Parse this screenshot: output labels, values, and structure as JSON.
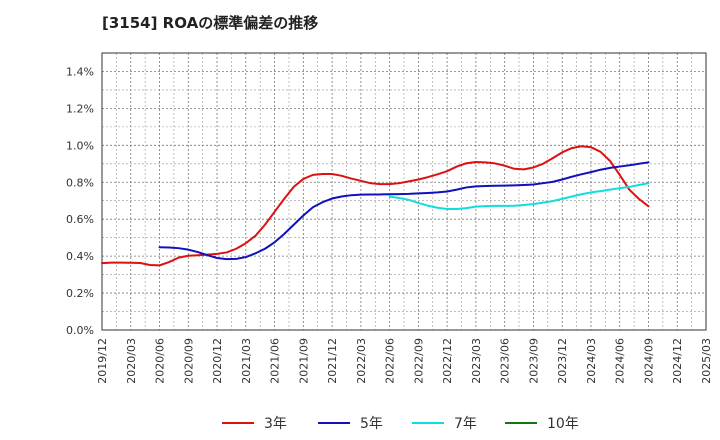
{
  "chart_data": {
    "type": "line",
    "title": "[3154]  ROAの標準偏差の推移",
    "xlabel": "",
    "ylabel": "",
    "ylim": [
      0,
      0.015
    ],
    "y_ticks": [
      "0.0%",
      "0.2%",
      "0.4%",
      "0.6%",
      "0.8%",
      "1.0%",
      "1.2%",
      "1.4%"
    ],
    "x_ticks": [
      "2019/12",
      "2020/03",
      "2020/06",
      "2020/09",
      "2020/12",
      "2021/03",
      "2021/06",
      "2021/09",
      "2021/12",
      "2022/03",
      "2022/06",
      "2022/09",
      "2022/12",
      "2023/03",
      "2023/06",
      "2023/09",
      "2023/12",
      "2024/03",
      "2024/06",
      "2024/09",
      "2024/12",
      "2025/03"
    ],
    "grid": true,
    "legend_position": "bottom",
    "series": [
      {
        "name": "3年",
        "color": "#dd1111",
        "points": [
          [
            "2019/12",
            0.00362
          ],
          [
            "2020/01",
            0.00365
          ],
          [
            "2020/02",
            0.00365
          ],
          [
            "2020/03",
            0.00364
          ],
          [
            "2020/04",
            0.00363
          ],
          [
            "2020/05",
            0.00352
          ],
          [
            "2020/06",
            0.0035
          ],
          [
            "2020/07",
            0.00368
          ],
          [
            "2020/08",
            0.00392
          ],
          [
            "2020/09",
            0.00402
          ],
          [
            "2020/10",
            0.00405
          ],
          [
            "2020/11",
            0.00408
          ],
          [
            "2020/12",
            0.00412
          ],
          [
            "2021/01",
            0.0042
          ],
          [
            "2021/02",
            0.0044
          ],
          [
            "2021/03",
            0.0047
          ],
          [
            "2021/04",
            0.0051
          ],
          [
            "2021/05",
            0.0057
          ],
          [
            "2021/06",
            0.0064
          ],
          [
            "2021/07",
            0.0071
          ],
          [
            "2021/08",
            0.00775
          ],
          [
            "2021/09",
            0.00818
          ],
          [
            "2021/10",
            0.0084
          ],
          [
            "2021/11",
            0.00845
          ],
          [
            "2021/12",
            0.00845
          ],
          [
            "2022/01",
            0.00835
          ],
          [
            "2022/02",
            0.0082
          ],
          [
            "2022/03",
            0.00808
          ],
          [
            "2022/04",
            0.00795
          ],
          [
            "2022/05",
            0.0079
          ],
          [
            "2022/06",
            0.0079
          ],
          [
            "2022/07",
            0.00795
          ],
          [
            "2022/08",
            0.00805
          ],
          [
            "2022/09",
            0.00815
          ],
          [
            "2022/10",
            0.00828
          ],
          [
            "2022/11",
            0.00843
          ],
          [
            "2022/12",
            0.0086
          ],
          [
            "2023/01",
            0.00885
          ],
          [
            "2023/02",
            0.00903
          ],
          [
            "2023/03",
            0.0091
          ],
          [
            "2023/04",
            0.00908
          ],
          [
            "2023/05",
            0.00902
          ],
          [
            "2023/06",
            0.0089
          ],
          [
            "2023/07",
            0.00873
          ],
          [
            "2023/08",
            0.0087
          ],
          [
            "2023/09",
            0.0088
          ],
          [
            "2023/10",
            0.009
          ],
          [
            "2023/11",
            0.0093
          ],
          [
            "2023/12",
            0.00962
          ],
          [
            "2024/01",
            0.00985
          ],
          [
            "2024/02",
            0.00995
          ],
          [
            "2024/03",
            0.0099
          ],
          [
            "2024/04",
            0.00965
          ],
          [
            "2024/05",
            0.00915
          ],
          [
            "2024/06",
            0.0084
          ],
          [
            "2024/07",
            0.0076
          ],
          [
            "2024/08",
            0.0071
          ],
          [
            "2024/09",
            0.0067
          ]
        ]
      },
      {
        "name": "5年",
        "color": "#1111bb",
        "points": [
          [
            "2020/06",
            0.00448
          ],
          [
            "2020/07",
            0.00447
          ],
          [
            "2020/08",
            0.00443
          ],
          [
            "2020/09",
            0.00435
          ],
          [
            "2020/10",
            0.00422
          ],
          [
            "2020/11",
            0.00405
          ],
          [
            "2020/12",
            0.0039
          ],
          [
            "2021/01",
            0.00384
          ],
          [
            "2021/02",
            0.00385
          ],
          [
            "2021/03",
            0.00395
          ],
          [
            "2021/04",
            0.00415
          ],
          [
            "2021/05",
            0.0044
          ],
          [
            "2021/06",
            0.00475
          ],
          [
            "2021/07",
            0.0052
          ],
          [
            "2021/08",
            0.0057
          ],
          [
            "2021/09",
            0.0062
          ],
          [
            "2021/10",
            0.00665
          ],
          [
            "2021/11",
            0.00692
          ],
          [
            "2021/12",
            0.00712
          ],
          [
            "2022/01",
            0.00723
          ],
          [
            "2022/02",
            0.0073
          ],
          [
            "2022/03",
            0.00733
          ],
          [
            "2022/04",
            0.00734
          ],
          [
            "2022/05",
            0.00734
          ],
          [
            "2022/06",
            0.00735
          ],
          [
            "2022/07",
            0.00736
          ],
          [
            "2022/08",
            0.00737
          ],
          [
            "2022/09",
            0.0074
          ],
          [
            "2022/10",
            0.00742
          ],
          [
            "2022/11",
            0.00745
          ],
          [
            "2022/12",
            0.0075
          ],
          [
            "2023/01",
            0.0076
          ],
          [
            "2023/02",
            0.00772
          ],
          [
            "2023/03",
            0.00778
          ],
          [
            "2023/04",
            0.0078
          ],
          [
            "2023/05",
            0.00781
          ],
          [
            "2023/06",
            0.00782
          ],
          [
            "2023/07",
            0.00783
          ],
          [
            "2023/08",
            0.00785
          ],
          [
            "2023/09",
            0.00788
          ],
          [
            "2023/10",
            0.00795
          ],
          [
            "2023/11",
            0.00802
          ],
          [
            "2023/12",
            0.00815
          ],
          [
            "2024/01",
            0.0083
          ],
          [
            "2024/02",
            0.00843
          ],
          [
            "2024/03",
            0.00855
          ],
          [
            "2024/04",
            0.00868
          ],
          [
            "2024/05",
            0.00878
          ],
          [
            "2024/06",
            0.00885
          ],
          [
            "2024/07",
            0.00892
          ],
          [
            "2024/08",
            0.009
          ],
          [
            "2024/09",
            0.00908
          ]
        ]
      },
      {
        "name": "7年",
        "color": "#11dddd",
        "points": [
          [
            "2022/06",
            0.00722
          ],
          [
            "2022/07",
            0.00715
          ],
          [
            "2022/08",
            0.00705
          ],
          [
            "2022/09",
            0.00688
          ],
          [
            "2022/10",
            0.00673
          ],
          [
            "2022/11",
            0.00662
          ],
          [
            "2022/12",
            0.00655
          ],
          [
            "2023/01",
            0.00655
          ],
          [
            "2023/02",
            0.0066
          ],
          [
            "2023/03",
            0.00668
          ],
          [
            "2023/04",
            0.00671
          ],
          [
            "2023/05",
            0.00672
          ],
          [
            "2023/06",
            0.00672
          ],
          [
            "2023/07",
            0.00673
          ],
          [
            "2023/08",
            0.00677
          ],
          [
            "2023/09",
            0.00682
          ],
          [
            "2023/10",
            0.0069
          ],
          [
            "2023/11",
            0.00698
          ],
          [
            "2023/12",
            0.0071
          ],
          [
            "2024/01",
            0.00723
          ],
          [
            "2024/02",
            0.00735
          ],
          [
            "2024/03",
            0.00745
          ],
          [
            "2024/04",
            0.00752
          ],
          [
            "2024/05",
            0.0076
          ],
          [
            "2024/06",
            0.00768
          ],
          [
            "2024/07",
            0.00775
          ],
          [
            "2024/08",
            0.00785
          ],
          [
            "2024/09",
            0.00795
          ]
        ]
      },
      {
        "name": "10年",
        "color": "#117711",
        "points": []
      }
    ]
  }
}
